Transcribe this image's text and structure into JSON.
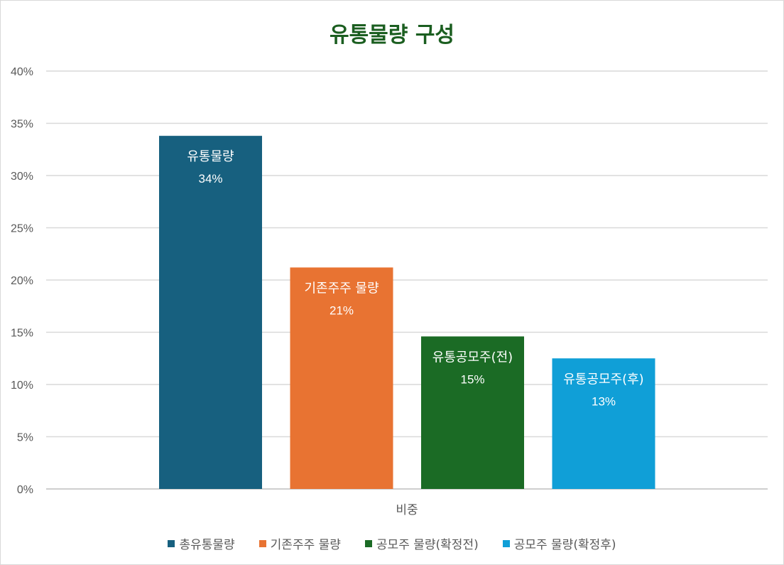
{
  "chart_data": {
    "type": "bar",
    "title": "유통물량 구성",
    "categories": [
      "비중"
    ],
    "ylim": [
      0,
      0.4
    ],
    "y_ticks": [
      "0%",
      "5%",
      "10%",
      "15%",
      "20%",
      "25%",
      "30%",
      "35%",
      "40%"
    ],
    "grid": true,
    "legend_position": "bottom",
    "series": [
      {
        "name": "총유통물량",
        "bar_label": "유통물량",
        "value": 0.338,
        "value_label": "34%",
        "color": "#17607f"
      },
      {
        "name": "기존주주 물량",
        "bar_label": "기존주주 물량",
        "value": 0.212,
        "value_label": "21%",
        "color": "#e87332"
      },
      {
        "name": "공모주 물량(확정전)",
        "bar_label": "유통공모주(전)",
        "value": 0.146,
        "value_label": "15%",
        "color": "#1b6b25"
      },
      {
        "name": "공모주 물량(확정후)",
        "bar_label": "유통공모주(후)",
        "value": 0.125,
        "value_label": "13%",
        "color": "#109fd7"
      }
    ]
  }
}
